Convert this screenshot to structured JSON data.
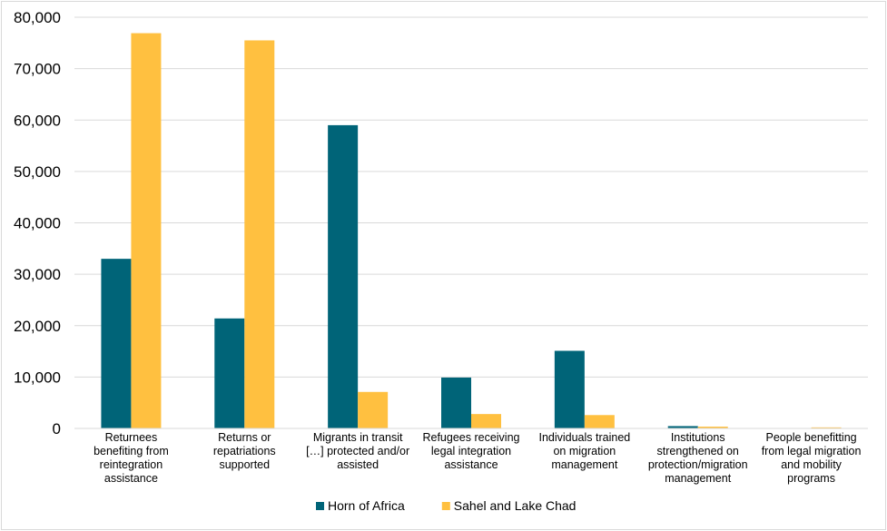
{
  "chart_data": {
    "type": "bar",
    "title": "",
    "xlabel": "",
    "ylabel": "",
    "ylim": [
      0,
      80000
    ],
    "yticks": [
      0,
      10000,
      20000,
      30000,
      40000,
      50000,
      60000,
      70000,
      80000
    ],
    "ytick_labels": [
      "0",
      "10,000",
      "20,000",
      "30,000",
      "40,000",
      "50,000",
      "60,000",
      "70,000",
      "80,000"
    ],
    "grid": true,
    "legend_position": "bottom",
    "categories": [
      [
        "Returnees",
        "benefiting from",
        "reintegration",
        "assistance"
      ],
      [
        "Returns or",
        "repatriations",
        "supported"
      ],
      [
        "Migrants in transit",
        "[…] protected and/or",
        "assisted"
      ],
      [
        "Refugees receiving",
        "legal integration",
        "assistance"
      ],
      [
        "Individuals trained",
        "on migration",
        "management"
      ],
      [
        "Institutions",
        "strengthened on",
        "protection/migration",
        "management"
      ],
      [
        "People benefitting",
        "from legal migration",
        "and mobility",
        "programs"
      ]
    ],
    "series": [
      {
        "name": "Horn of Africa",
        "color": "#006478",
        "values": [
          33000,
          21400,
          59000,
          9900,
          15100,
          450,
          0
        ]
      },
      {
        "name": "Sahel and Lake Chad",
        "color": "#FFC040",
        "values": [
          76900,
          75500,
          7100,
          2800,
          2600,
          350,
          200
        ]
      }
    ]
  }
}
